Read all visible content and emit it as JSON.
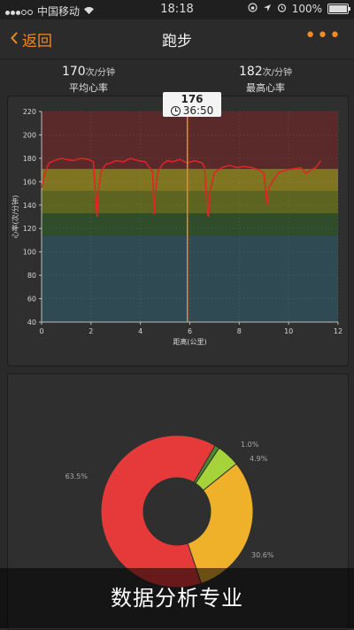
{
  "status_bar": {
    "carrier": "中国移动",
    "time": "18:18",
    "battery": "100%",
    "battery_level": 1.0
  },
  "navbar": {
    "back_label": "返回",
    "title": "跑步",
    "more_label": "•••"
  },
  "stats": {
    "avg": {
      "value": "170",
      "unit": "次/分钟",
      "label": "平均心率"
    },
    "max": {
      "value": "182",
      "unit": "次/分钟",
      "label": "最高心率"
    }
  },
  "annotation": {
    "value": "176",
    "time": "36:50"
  },
  "colors": {
    "accent": "#f28a22",
    "zone_max": "#5a2a2a",
    "zone_high": "#7f7420",
    "zone_mid": "#5d6420",
    "zone_low": "#2f4d2a",
    "zone_rest": "#2f4a52",
    "line": "#e22424"
  },
  "chart_data": [
    {
      "type": "line",
      "xlabel": "距离(公里)",
      "ylabel": "心率(次/分钟)",
      "xlim": [
        0,
        12
      ],
      "ylim": [
        40,
        220
      ],
      "x_ticks": [
        0,
        2,
        4,
        6,
        8,
        10,
        12
      ],
      "y_ticks": [
        40,
        60,
        80,
        100,
        120,
        140,
        160,
        180,
        200,
        220
      ],
      "zones": [
        {
          "from": 40,
          "to": 114,
          "color": "#2f4a52"
        },
        {
          "from": 114,
          "to": 133,
          "color": "#2f4d2a"
        },
        {
          "from": 133,
          "to": 152,
          "color": "#5d6420"
        },
        {
          "from": 152,
          "to": 171,
          "color": "#7f7420"
        },
        {
          "from": 171,
          "to": 220,
          "color": "#5a2a2a"
        }
      ],
      "cursor_x": 5.9,
      "series": [
        {
          "x": [
            0.0,
            0.15,
            0.3,
            0.5,
            0.8,
            1.0,
            1.3,
            1.6,
            1.9,
            2.1,
            2.2,
            2.25,
            2.3,
            2.4,
            2.6,
            2.8,
            3.0,
            3.3,
            3.6,
            3.9,
            4.2,
            4.5,
            4.55,
            4.6,
            4.7,
            4.9,
            5.1,
            5.3,
            5.6,
            5.9,
            6.2,
            6.5,
            6.6,
            6.7,
            6.75,
            6.8,
            7.0,
            7.3,
            7.6,
            7.9,
            8.2,
            8.5,
            8.8,
            9.0,
            9.1,
            9.15,
            9.2,
            9.4,
            9.6,
            9.9,
            10.2,
            10.5,
            10.7,
            10.9,
            11.1,
            11.3
          ],
          "y": [
            155,
            168,
            176,
            178,
            180,
            179,
            178,
            180,
            179,
            177,
            140,
            130,
            152,
            168,
            175,
            176,
            178,
            177,
            180,
            178,
            177,
            168,
            132,
            150,
            168,
            175,
            178,
            177,
            179,
            176,
            178,
            176,
            172,
            135,
            130,
            150,
            168,
            172,
            174,
            172,
            173,
            172,
            170,
            167,
            145,
            140,
            155,
            162,
            168,
            170,
            171,
            172,
            167,
            170,
            172,
            178
          ]
        }
      ]
    },
    {
      "type": "pie",
      "slices": [
        {
          "label": "63.5%",
          "value": 63.5,
          "color": "#e63a3a"
        },
        {
          "label": "30.6%",
          "value": 30.6,
          "color": "#efb02a"
        },
        {
          "label": "4.9%",
          "value": 4.9,
          "color": "#a6d33a"
        },
        {
          "label": "1.0%",
          "value": 1.0,
          "color": "#4a8a2a"
        }
      ]
    }
  ],
  "banner": {
    "text": "数据分析专业"
  }
}
